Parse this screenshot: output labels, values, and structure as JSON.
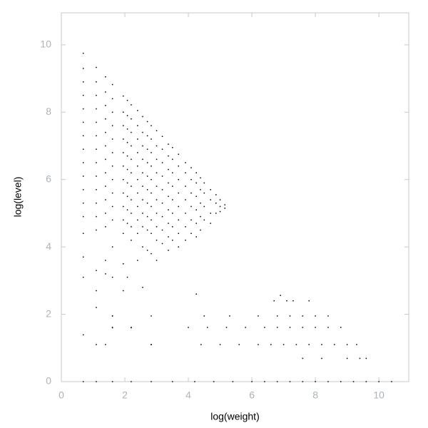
{
  "chart_data": {
    "type": "scatter",
    "x_label": "log(weight)",
    "y_label": "log(level)",
    "color": "#000000",
    "xlim": [
      0,
      10.94
    ],
    "ylim": [
      0,
      10.95
    ],
    "xticks": [
      0,
      2,
      4,
      6,
      8,
      10
    ],
    "yticks": [
      0,
      2,
      4,
      6,
      8,
      10
    ],
    "series": [
      {
        "x": [
          0.69,
          0.69,
          0.69,
          0.69,
          0.69,
          0.69,
          0.69,
          0.69,
          0.69,
          0.69,
          0.69,
          0.69,
          0.69,
          0.69,
          0.69,
          0.69,
          0.69
        ],
        "values": [
          9.75,
          9.3,
          8.9,
          8.5,
          8.1,
          7.7,
          7.3,
          6.9,
          6.5,
          6.1,
          5.7,
          5.3,
          4.9,
          4.4,
          3.7,
          3.1,
          1.39
        ]
      },
      {
        "x": [
          1.1,
          1.1,
          1.1,
          1.1,
          1.1,
          1.1,
          1.1,
          1.1,
          1.1,
          1.1,
          1.1,
          1.1,
          1.1,
          1.1,
          1.1,
          1.1,
          1.1
        ],
        "values": [
          9.33,
          8.9,
          8.5,
          8.1,
          7.7,
          7.3,
          6.9,
          6.5,
          6.1,
          5.7,
          5.3,
          4.9,
          4.5,
          3.3,
          2.7,
          2.2,
          1.1
        ]
      },
      {
        "x": [
          1.39,
          1.39,
          1.39,
          1.39,
          1.39,
          1.39,
          1.39,
          1.39,
          1.39,
          1.39,
          1.39,
          1.39,
          1.39,
          1.39
        ],
        "values": [
          9.05,
          8.6,
          8.2,
          7.8,
          7.4,
          7.0,
          6.6,
          6.2,
          5.8,
          5.4,
          5.0,
          4.6,
          3.6,
          3.2
        ]
      },
      {
        "x": [
          1.61,
          1.61,
          1.61,
          1.61,
          1.61,
          1.61,
          1.61,
          1.61,
          1.61,
          1.61,
          1.61,
          1.61,
          1.61,
          1.61,
          1.61
        ],
        "values": [
          8.82,
          8.4,
          8.0,
          7.6,
          7.2,
          6.8,
          6.4,
          6.0,
          5.6,
          5.2,
          4.8,
          4.0,
          3.1,
          1.95,
          1.6
        ]
      },
      {
        "x": [
          1.95,
          1.95,
          1.95,
          1.95,
          1.95,
          1.95,
          1.95,
          1.95,
          1.95,
          1.95,
          1.95,
          1.95,
          1.95
        ],
        "values": [
          8.48,
          8.0,
          7.6,
          7.2,
          6.8,
          6.4,
          6.0,
          5.6,
          5.2,
          4.8,
          4.4,
          3.5,
          2.7
        ]
      },
      {
        "x": [
          2.08,
          2.08,
          2.08,
          2.08,
          2.08,
          2.08,
          2.08,
          2.08,
          2.08,
          2.08,
          2.08
        ],
        "values": [
          8.35,
          7.9,
          7.5,
          7.1,
          6.7,
          6.3,
          5.9,
          5.5,
          5.1,
          4.7,
          3.1
        ]
      },
      {
        "x": [
          2.2,
          2.2,
          2.2,
          2.2,
          2.2,
          2.2,
          2.2,
          2.2,
          2.2,
          2.2,
          2.2,
          2.2
        ],
        "values": [
          8.22,
          7.8,
          7.4,
          7.0,
          6.6,
          6.2,
          5.8,
          5.4,
          5.0,
          4.6,
          4.2,
          1.6
        ]
      },
      {
        "x": [
          2.4,
          2.4,
          2.4,
          2.4,
          2.4,
          2.4,
          2.4,
          2.4,
          2.4,
          2.4,
          2.4
        ],
        "values": [
          8.05,
          7.6,
          7.2,
          6.8,
          6.4,
          6.0,
          5.6,
          5.2,
          4.8,
          4.4,
          3.6
        ]
      },
      {
        "x": [
          2.56,
          2.56,
          2.56,
          2.56,
          2.56,
          2.56,
          2.56,
          2.56,
          2.56,
          2.56,
          2.56
        ],
        "values": [
          7.87,
          7.4,
          7.0,
          6.6,
          6.2,
          5.8,
          5.4,
          5.0,
          4.6,
          4.0,
          2.8
        ]
      },
      {
        "x": [
          2.71,
          2.71,
          2.71,
          2.71,
          2.71,
          2.71,
          2.71,
          2.71,
          2.71,
          2.71
        ],
        "values": [
          7.72,
          7.3,
          6.9,
          6.5,
          6.1,
          5.7,
          5.3,
          4.9,
          4.5,
          3.9
        ]
      },
      {
        "x": [
          2.83,
          2.83,
          2.83,
          2.83,
          2.83,
          2.83,
          2.83,
          2.83,
          2.83,
          2.83,
          2.83
        ],
        "values": [
          7.6,
          7.2,
          6.8,
          6.4,
          6.0,
          5.6,
          5.2,
          4.8,
          4.4,
          3.8,
          1.1
        ]
      },
      {
        "x": [
          3.0,
          3.0,
          3.0,
          3.0,
          3.0,
          3.0,
          3.0,
          3.0,
          3.0,
          3.0
        ],
        "values": [
          7.45,
          7.0,
          6.6,
          6.2,
          5.8,
          5.4,
          5.0,
          4.6,
          4.2,
          3.6
        ]
      },
      {
        "x": [
          3.18,
          3.18,
          3.18,
          3.18,
          3.18,
          3.18,
          3.18,
          3.18,
          3.18
        ],
        "values": [
          7.28,
          6.9,
          6.5,
          6.1,
          5.7,
          5.3,
          4.9,
          4.5,
          4.1
        ]
      },
      {
        "x": [
          3.37,
          3.37,
          3.37,
          3.37,
          3.37,
          3.37,
          3.37,
          3.37,
          3.37
        ],
        "values": [
          7.05,
          6.7,
          6.3,
          5.9,
          5.5,
          5.1,
          4.7,
          4.3,
          3.9
        ]
      },
      {
        "x": [
          3.5,
          3.5,
          3.5,
          3.5,
          3.5,
          3.5,
          3.5,
          3.5
        ],
        "values": [
          6.95,
          6.6,
          6.2,
          5.8,
          5.4,
          5.0,
          4.6,
          4.2
        ]
      },
      {
        "x": [
          3.69,
          3.69,
          3.69,
          3.69,
          3.69,
          3.69,
          3.69,
          3.69
        ],
        "values": [
          6.75,
          6.4,
          6.0,
          5.6,
          5.2,
          4.8,
          4.4,
          4.0
        ]
      },
      {
        "x": [
          3.91,
          3.91,
          3.91,
          3.91,
          3.91,
          3.91,
          3.91
        ],
        "values": [
          6.5,
          6.2,
          5.8,
          5.4,
          5.0,
          4.6,
          4.2
        ]
      },
      {
        "x": [
          4.09,
          4.09,
          4.09,
          4.09,
          4.09,
          4.09
        ],
        "values": [
          6.35,
          6.0,
          5.6,
          5.2,
          4.8,
          4.4
        ]
      },
      {
        "x": [
          4.25,
          4.25,
          4.25,
          4.25,
          4.25,
          4.25,
          4.25
        ],
        "values": [
          6.2,
          5.9,
          5.5,
          5.1,
          4.7,
          4.3,
          2.6
        ]
      },
      {
        "x": [
          4.38,
          4.38,
          4.38,
          4.38,
          4.38
        ],
        "values": [
          6.05,
          5.7,
          5.3,
          4.9,
          4.5
        ]
      },
      {
        "x": [
          4.5,
          4.5,
          4.5,
          4.5
        ],
        "values": [
          5.9,
          5.6,
          5.2,
          4.8
        ]
      },
      {
        "x": [
          4.7,
          4.7,
          4.7,
          4.7
        ],
        "values": [
          5.7,
          5.4,
          5.0,
          4.7
        ]
      },
      {
        "x": [
          4.87,
          4.87,
          4.87
        ],
        "values": [
          5.55,
          5.3,
          5.0
        ]
      },
      {
        "x": [
          5.0,
          5.0,
          5.0
        ],
        "values": [
          5.4,
          5.2,
          5.05
        ]
      },
      {
        "x": [
          5.15,
          5.15
        ],
        "values": [
          5.25,
          5.15
        ]
      },
      {
        "x": [
          0.69,
          1.1,
          1.61,
          2.2,
          2.83,
          3.5,
          4.2,
          4.8,
          5.4,
          6.0,
          6.4,
          6.8,
          7.2,
          7.6,
          8.0,
          8.4,
          8.8,
          9.2,
          9.6,
          10.0,
          10.4
        ],
        "values": [
          0,
          0,
          0,
          0,
          0,
          0,
          0,
          0,
          0,
          0,
          0,
          0,
          0,
          0,
          0,
          0,
          0,
          0,
          0,
          0,
          0
        ]
      },
      {
        "x": [
          7.6,
          8.2,
          9.0,
          9.4,
          9.6
        ],
        "values": [
          0.69,
          0.69,
          0.69,
          0.69,
          0.69
        ]
      },
      {
        "x": [
          1.39,
          2.83,
          4.4,
          5.0,
          5.6,
          6.2,
          6.6,
          7.0,
          7.4,
          7.8,
          8.2,
          8.6,
          9.0,
          9.3
        ],
        "values": [
          1.1,
          1.1,
          1.1,
          1.1,
          1.1,
          1.1,
          1.1,
          1.1,
          1.1,
          1.1,
          1.1,
          1.1,
          1.1,
          1.1
        ]
      },
      {
        "x": [
          1.61,
          2.2,
          4.0,
          4.6,
          5.2,
          5.8,
          6.4,
          6.8,
          7.2,
          7.6,
          8.0,
          8.4,
          8.8
        ],
        "values": [
          1.61,
          1.61,
          1.61,
          1.61,
          1.61,
          1.61,
          1.61,
          1.61,
          1.61,
          1.61,
          1.61,
          1.61,
          1.61
        ]
      },
      {
        "x": [
          1.61,
          2.83,
          4.5,
          5.3,
          6.2,
          6.8,
          7.2,
          7.6,
          8.0,
          8.4
        ],
        "values": [
          1.95,
          1.95,
          1.95,
          1.95,
          1.95,
          1.95,
          1.95,
          1.95,
          1.95,
          1.95
        ]
      },
      {
        "x": [
          6.7,
          7.1,
          7.3,
          7.8
        ],
        "values": [
          2.4,
          2.4,
          2.4,
          2.4
        ]
      },
      {
        "x": [
          6.9
        ],
        "values": [
          2.56
        ]
      }
    ]
  }
}
